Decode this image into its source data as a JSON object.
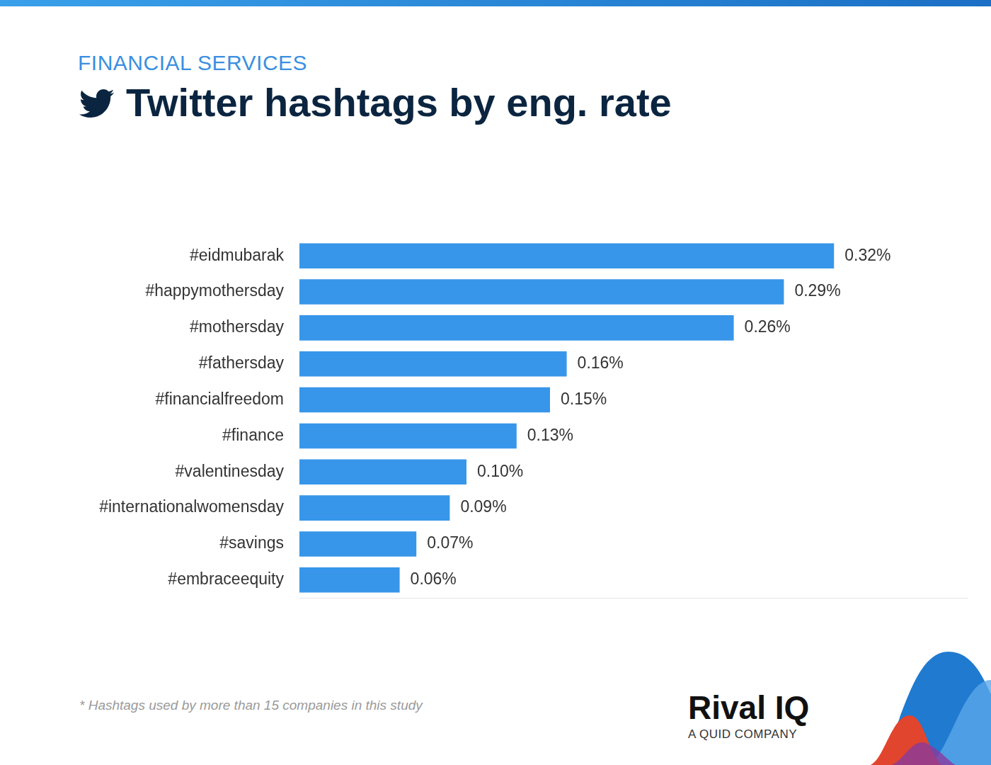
{
  "chart_data": {
    "type": "bar",
    "orientation": "horizontal",
    "subtitle": "FINANCIAL SERVICES",
    "title": "Twitter hashtags by eng. rate",
    "categories": [
      "#eidmubarak",
      "#happymothersday",
      "#mothersday",
      "#fathersday",
      "#financialfreedom",
      "#finance",
      "#valentinesday",
      "#internationalwomensday",
      "#savings",
      "#embraceequity"
    ],
    "values": [
      0.32,
      0.29,
      0.26,
      0.16,
      0.15,
      0.13,
      0.1,
      0.09,
      0.07,
      0.06
    ],
    "value_labels": [
      "0.32%",
      "0.29%",
      "0.26%",
      "0.16%",
      "0.15%",
      "0.13%",
      "0.10%",
      "0.09%",
      "0.07%",
      "0.06%"
    ],
    "color": "#3796e9",
    "xlim": [
      0,
      0.4
    ],
    "grid": false,
    "data_labels": true,
    "tick_labels": "y"
  },
  "footnote": "* Hashtags used by more than 15 companies in this study",
  "logo": {
    "name": "Rival IQ",
    "tagline": "A QUID COMPANY"
  }
}
